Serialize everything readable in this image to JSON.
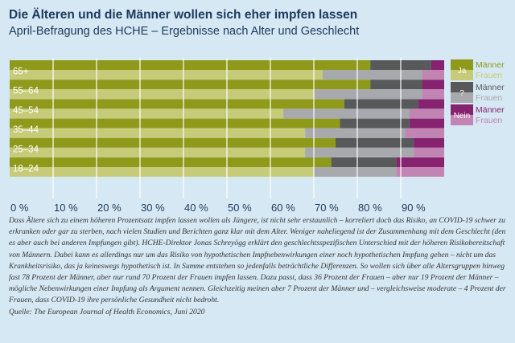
{
  "title": "Die Älteren und die Männer wollen sich eher impfen lassen",
  "subtitle": "April-Befragung des HCHE – Ergebnisse nach Alter und Geschlecht",
  "chart_data": {
    "type": "bar",
    "orientation": "horizontal",
    "stacked": true,
    "unit": "%",
    "xlim": [
      0,
      100
    ],
    "x_ticks": [
      "0 %",
      "10 %",
      "20 %",
      "30 %",
      "40 %",
      "50 %",
      "60 %",
      "70 %",
      "80 %",
      "90 %"
    ],
    "x_tick_values": [
      0,
      10,
      20,
      30,
      40,
      50,
      60,
      70,
      80,
      90
    ],
    "categories": [
      "65+",
      "55–64",
      "45–54",
      "35–44",
      "25–34",
      "18–24"
    ],
    "segments": [
      "Ja",
      "?",
      "Nein"
    ],
    "series": [
      {
        "name": "Männer",
        "ja": [
          83,
          83,
          77,
          76,
          75,
          74
        ],
        "unsicher": [
          14,
          12,
          17,
          16,
          18,
          15
        ],
        "nein": [
          3,
          5,
          6,
          8,
          7,
          11
        ]
      },
      {
        "name": "Frauen",
        "ja": [
          72,
          70,
          63,
          68,
          68,
          70
        ],
        "unsicher": [
          23,
          25,
          29,
          23,
          25,
          19
        ],
        "nein": [
          5,
          5,
          8,
          9,
          7,
          11
        ]
      }
    ],
    "legend": [
      {
        "group": "Ja",
        "men_label": "Männer",
        "women_label": "Frauen"
      },
      {
        "group": "?",
        "men_label": "Männer",
        "women_label": "Frauen"
      },
      {
        "group": "Nein",
        "men_label": "Männer",
        "women_label": "Frauen"
      }
    ],
    "legend_position": "right",
    "colors": {
      "ja_maenner": "#8f9a1a",
      "ja_frauen": "#c6cb79",
      "unsicher_maenner": "#58595b",
      "unsicher_frauen": "#a7a9ac",
      "nein_maenner": "#87226f",
      "nein_frauen": "#c285b3",
      "band_dark": "#b6d3e7",
      "band_light": "#d6e8f3"
    }
  },
  "caption": "Dass Ältere sich zu einem höheren Prozentsatz impfen lassen wollen als Jüngere, ist nicht sehr erstaunlich – korreliert doch das Risiko, an COVID-19 schwer zu erkranken oder gar zu sterben, nach vielen Studien und Berichten ganz klar mit dem Alter. Weniger naheliegend ist der Zusammenhang mit dem Geschlecht (den es aber auch bei anderen Impfungen gibt). HCHE-Direktor Jonas Schreyögg erklärt den geschlechtsspezifischen Unterschied mit der höheren Risikobereitschaft von Männern. Dabei kann es allerdings nur um das Risiko von hypothetischen Impfnebenwirkungen einer noch hypothetischen Impfung gehen – nicht um das Krankheitsrisiko, das ja keineswegs hypothetisch ist. In Summe entstehen so jedenfalls beträchtliche Differenzen. So wollen sich über alle Altersgruppen hinweg fast 78 Prozent der Männer, aber nur rund 70 Prozent der Frauen impfen lassen. Dazu passt, dass 36 Prozent der Frauen – aber nur 19 Prozent der Männer – mögliche Nebenwirkungen einer Impfung als Argument nennen. Gleichzeitig meinen aber 7 Prozent der Männer und – vergleichsweise moderate – 4 Prozent der Frauen, dass COVID-19 ihre persönliche Gesundheit nicht bedroht.",
  "source": "Quelle: The European Journal of Health Economics, Juni 2020"
}
